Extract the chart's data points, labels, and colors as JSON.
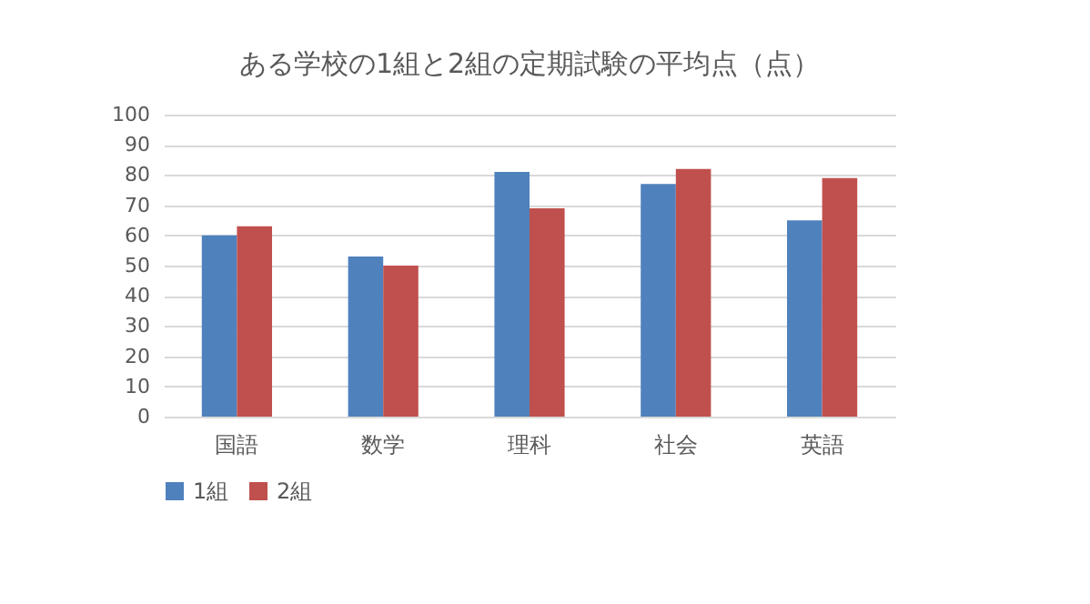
{
  "chart_data": {
    "type": "bar",
    "title": "ある学校の1組と2組の定期試験の平均点（点）",
    "categories": [
      "国語",
      "数学",
      "理科",
      "社会",
      "英語"
    ],
    "series": [
      {
        "name": "1組",
        "color": "#4f81bd",
        "values": [
          60,
          53,
          81,
          77,
          65
        ]
      },
      {
        "name": "2組",
        "color": "#c0504d",
        "values": [
          63,
          50,
          69,
          82,
          79
        ]
      }
    ],
    "ylim": [
      0,
      100
    ],
    "yticks": [
      0,
      10,
      20,
      30,
      40,
      50,
      60,
      70,
      80,
      90,
      100
    ],
    "grid": "y",
    "legend": "bottom"
  }
}
